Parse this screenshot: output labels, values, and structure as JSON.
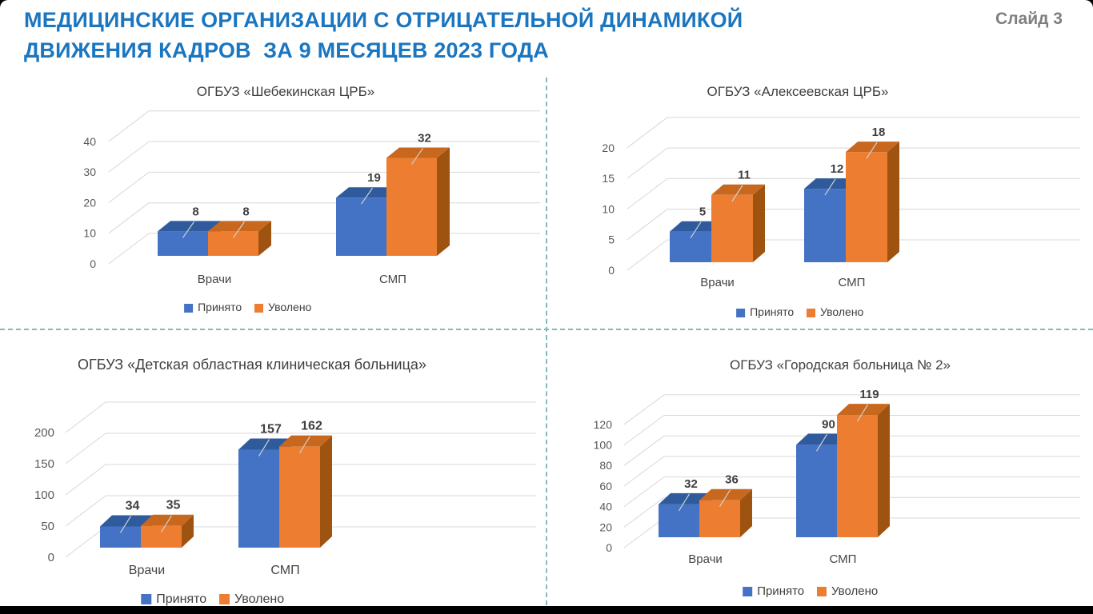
{
  "slide": {
    "title_line1": "МЕДИЦИНСКИЕ ОРГАНИЗАЦИИ С ОТРИЦАТЕЛЬНОЙ ДИНАМИКОЙ",
    "title_line2": "ДВИЖЕНИЯ КАДРОВ  ЗА 9 МЕСЯЦЕВ 2023 ГОДА",
    "slide_number": "Слайд 3"
  },
  "colors": {
    "title_blue": "#1B76C0",
    "slide_number_gray": "#7F7F7F",
    "divider_teal": "#86B8BE",
    "grid_gray": "#D8D8D8",
    "tick_label_gray": "#595959",
    "value_label_gray": "#3F3F3F",
    "accepted_front": "#4472C4",
    "accepted_top": "#2F5B9D",
    "accepted_side": "#29518C",
    "dismissed_front": "#ED7D31",
    "dismissed_top": "#C8681F",
    "dismissed_side": "#9F5310"
  },
  "legend": {
    "accepted": "Принято",
    "dismissed": "Уволено"
  },
  "chart_data": [
    {
      "type": "bar",
      "title": "ОГБУЗ «Шебекинская ЦРБ»",
      "categories": [
        "Врачи",
        "СМП"
      ],
      "series": [
        {
          "name": "Принято",
          "values": [
            8,
            19
          ]
        },
        {
          "name": "Уволено",
          "values": [
            8,
            32
          ]
        }
      ],
      "ylim": [
        0,
        40
      ],
      "yticks": [
        0,
        10,
        20,
        30,
        40
      ],
      "grid": true,
      "legend_position": "bottom",
      "style": "3d-column"
    },
    {
      "type": "bar",
      "title": "ОГБУЗ «Алексеевская ЦРБ»",
      "categories": [
        "Врачи",
        "СМП"
      ],
      "series": [
        {
          "name": "Принято",
          "values": [
            5,
            12
          ]
        },
        {
          "name": "Уволено",
          "values": [
            11,
            18
          ]
        }
      ],
      "ylim": [
        0,
        20
      ],
      "yticks": [
        0,
        5,
        10,
        15,
        20
      ],
      "grid": true,
      "legend_position": "bottom",
      "style": "3d-column"
    },
    {
      "type": "bar",
      "title": "ОГБУЗ «Детская областная клиническая больница»",
      "categories": [
        "Врачи",
        "СМП"
      ],
      "series": [
        {
          "name": "Принято",
          "values": [
            34,
            157
          ]
        },
        {
          "name": "Уволено",
          "values": [
            35,
            162
          ]
        }
      ],
      "ylim": [
        0,
        200
      ],
      "yticks": [
        0,
        50,
        100,
        150,
        200
      ],
      "grid": true,
      "legend_position": "bottom",
      "style": "3d-column"
    },
    {
      "type": "bar",
      "title": "ОГБУЗ «Городская больница № 2»",
      "categories": [
        "Врачи",
        "СМП"
      ],
      "series": [
        {
          "name": "Принято",
          "values": [
            32,
            90
          ]
        },
        {
          "name": "Уволено",
          "values": [
            36,
            119
          ]
        }
      ],
      "ylim": [
        0,
        120
      ],
      "yticks": [
        0,
        20,
        40,
        60,
        80,
        100,
        120
      ],
      "grid": true,
      "legend_position": "bottom",
      "style": "3d-column"
    }
  ]
}
